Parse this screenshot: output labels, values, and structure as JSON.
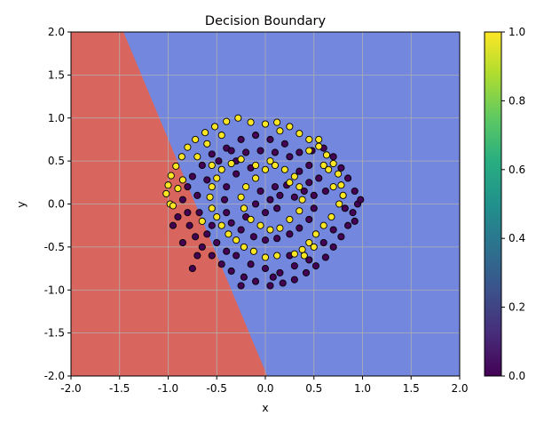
{
  "chart_data": {
    "type": "scatter",
    "title": "Decision Boundary",
    "xlabel": "x",
    "ylabel": "y",
    "xlim": [
      -2.0,
      2.0
    ],
    "ylim": [
      -2.0,
      2.0
    ],
    "xticks": [
      "-2.0",
      "-1.5",
      "-1.0",
      "-0.5",
      "0.0",
      "0.5",
      "1.0",
      "1.5",
      "2.0"
    ],
    "yticks": [
      "-2.0",
      "-1.5",
      "-1.0",
      "-0.5",
      "0.0",
      "0.5",
      "1.0",
      "1.5",
      "2.0"
    ],
    "grid": true,
    "regions": {
      "boundary_line": [
        [
          -1.46,
          2.0
        ],
        [
          0.02,
          -2.0
        ]
      ],
      "left_color": "#d8665e",
      "right_color": "#7387df"
    },
    "colorbar": {
      "range": [
        0.0,
        1.0
      ],
      "ticks": [
        "0.0",
        "0.2",
        "0.4",
        "0.6",
        "0.8",
        "1.0"
      ],
      "cmap": "viridis"
    },
    "point_colors": {
      "class0": "#440154",
      "class1": "#fde725",
      "edge": "#000000"
    },
    "series": [
      {
        "label": "1",
        "points": [
          [
            0.0,
            0.93
          ],
          [
            -0.15,
            0.95
          ],
          [
            -0.28,
            1.0
          ],
          [
            -0.4,
            0.96
          ],
          [
            -0.52,
            0.9
          ],
          [
            -0.62,
            0.83
          ],
          [
            -0.72,
            0.75
          ],
          [
            -0.8,
            0.66
          ],
          [
            -0.86,
            0.55
          ],
          [
            -0.92,
            0.44
          ],
          [
            -0.97,
            0.33
          ],
          [
            -1.0,
            0.22
          ],
          [
            -1.02,
            0.12
          ],
          [
            -0.98,
            0.0
          ],
          [
            -0.95,
            -0.02
          ],
          [
            0.12,
            0.95
          ],
          [
            0.25,
            0.9
          ],
          [
            0.35,
            0.82
          ],
          [
            0.45,
            0.75
          ],
          [
            0.55,
            0.67
          ],
          [
            0.63,
            0.57
          ],
          [
            0.7,
            0.47
          ],
          [
            0.75,
            0.35
          ],
          [
            0.78,
            0.22
          ],
          [
            0.8,
            0.1
          ],
          [
            0.76,
            0.0
          ],
          [
            0.68,
            -0.15
          ],
          [
            0.6,
            -0.25
          ],
          [
            0.52,
            -0.35
          ],
          [
            0.45,
            -0.45
          ],
          [
            0.38,
            -0.53
          ],
          [
            0.3,
            -0.58
          ],
          [
            0.12,
            -0.6
          ],
          [
            0.0,
            -0.62
          ],
          [
            -0.12,
            -0.55
          ],
          [
            -0.22,
            -0.5
          ],
          [
            -0.3,
            -0.42
          ],
          [
            -0.38,
            -0.35
          ],
          [
            -0.45,
            -0.25
          ],
          [
            -0.5,
            -0.15
          ],
          [
            -0.55,
            -0.05
          ],
          [
            -0.57,
            0.08
          ],
          [
            -0.55,
            0.2
          ],
          [
            -0.5,
            0.3
          ],
          [
            -0.45,
            0.4
          ],
          [
            -0.35,
            0.47
          ],
          [
            -0.25,
            0.52
          ],
          [
            -0.1,
            0.45
          ],
          [
            0.0,
            0.4
          ],
          [
            0.1,
            0.45
          ],
          [
            0.2,
            0.4
          ],
          [
            0.3,
            0.32
          ],
          [
            0.35,
            0.2
          ],
          [
            0.38,
            0.05
          ],
          [
            0.35,
            -0.08
          ],
          [
            0.25,
            -0.18
          ],
          [
            0.15,
            -0.28
          ],
          [
            0.05,
            -0.3
          ],
          [
            -0.05,
            -0.25
          ],
          [
            -0.15,
            -0.18
          ],
          [
            -0.22,
            -0.05
          ],
          [
            -0.25,
            0.08
          ],
          [
            -0.2,
            0.2
          ],
          [
            -0.1,
            0.3
          ],
          [
            0.55,
            0.75
          ],
          [
            0.65,
            0.4
          ],
          [
            0.7,
            0.2
          ],
          [
            0.5,
            -0.5
          ],
          [
            0.4,
            -0.6
          ],
          [
            -0.6,
            0.7
          ],
          [
            -0.7,
            0.55
          ],
          [
            -0.85,
            0.28
          ],
          [
            -0.9,
            0.18
          ],
          [
            0.45,
            0.62
          ],
          [
            0.05,
            0.5
          ],
          [
            0.15,
            0.85
          ],
          [
            -0.45,
            0.8
          ],
          [
            -0.55,
            0.45
          ],
          [
            -0.65,
            -0.2
          ],
          [
            0.6,
            0.45
          ],
          [
            0.25,
            0.25
          ]
        ]
      },
      {
        "label": "0",
        "points": [
          [
            -0.1,
            0.8
          ],
          [
            0.05,
            0.75
          ],
          [
            0.2,
            0.7
          ],
          [
            -0.25,
            0.75
          ],
          [
            -0.4,
            0.65
          ],
          [
            -0.55,
            0.58
          ],
          [
            -0.65,
            0.45
          ],
          [
            -0.75,
            0.32
          ],
          [
            -0.8,
            0.2
          ],
          [
            -0.85,
            0.05
          ],
          [
            -0.8,
            -0.1
          ],
          [
            -0.78,
            -0.25
          ],
          [
            -0.72,
            -0.38
          ],
          [
            -0.65,
            -0.5
          ],
          [
            -0.55,
            -0.6
          ],
          [
            -0.45,
            -0.7
          ],
          [
            -0.35,
            -0.78
          ],
          [
            -0.22,
            -0.85
          ],
          [
            -0.1,
            -0.9
          ],
          [
            0.05,
            -0.95
          ],
          [
            0.18,
            -0.92
          ],
          [
            0.3,
            -0.88
          ],
          [
            0.42,
            -0.8
          ],
          [
            0.52,
            -0.72
          ],
          [
            0.62,
            -0.62
          ],
          [
            0.7,
            -0.5
          ],
          [
            0.78,
            -0.38
          ],
          [
            0.85,
            -0.25
          ],
          [
            0.9,
            -0.1
          ],
          [
            0.95,
            0.0
          ],
          [
            0.98,
            0.05
          ],
          [
            0.92,
            0.15
          ],
          [
            0.85,
            0.3
          ],
          [
            0.78,
            0.42
          ],
          [
            0.7,
            0.55
          ],
          [
            0.6,
            0.65
          ],
          [
            0.48,
            0.62
          ],
          [
            0.35,
            0.6
          ],
          [
            0.25,
            0.55
          ],
          [
            0.1,
            0.6
          ],
          [
            -0.05,
            0.62
          ],
          [
            -0.2,
            0.6
          ],
          [
            -0.3,
            0.35
          ],
          [
            -0.4,
            0.2
          ],
          [
            -0.42,
            0.05
          ],
          [
            -0.4,
            -0.1
          ],
          [
            -0.35,
            -0.22
          ],
          [
            -0.25,
            -0.3
          ],
          [
            -0.12,
            -0.38
          ],
          [
            0.0,
            -0.42
          ],
          [
            0.12,
            -0.4
          ],
          [
            0.25,
            -0.35
          ],
          [
            0.35,
            -0.28
          ],
          [
            0.45,
            -0.18
          ],
          [
            0.5,
            -0.05
          ],
          [
            0.5,
            0.1
          ],
          [
            0.45,
            0.25
          ],
          [
            0.35,
            0.38
          ],
          [
            0.22,
            0.22
          ],
          [
            0.1,
            0.2
          ],
          [
            -0.05,
            0.15
          ],
          [
            -0.1,
            0.0
          ],
          [
            0.0,
            -0.1
          ],
          [
            0.12,
            -0.05
          ],
          [
            0.15,
            0.1
          ],
          [
            -0.9,
            -0.15
          ],
          [
            -0.95,
            -0.25
          ],
          [
            -0.85,
            -0.45
          ],
          [
            -0.7,
            -0.6
          ],
          [
            -0.6,
            -0.35
          ],
          [
            -0.5,
            -0.45
          ],
          [
            -0.3,
            -0.6
          ],
          [
            -0.15,
            -0.7
          ],
          [
            0.0,
            -0.75
          ],
          [
            0.15,
            -0.8
          ],
          [
            0.3,
            -0.72
          ],
          [
            0.45,
            -0.65
          ],
          [
            0.6,
            -0.45
          ],
          [
            0.7,
            -0.3
          ],
          [
            0.82,
            -0.05
          ],
          [
            0.62,
            0.15
          ],
          [
            0.55,
            0.3
          ],
          [
            0.45,
            0.45
          ],
          [
            -0.15,
            0.42
          ],
          [
            -0.3,
            0.5
          ],
          [
            -0.48,
            0.5
          ],
          [
            -0.6,
            0.28
          ],
          [
            -0.7,
            0.1
          ],
          [
            -0.68,
            -0.1
          ],
          [
            -0.55,
            -0.25
          ],
          [
            0.25,
            -0.6
          ],
          [
            0.08,
            -0.85
          ],
          [
            -0.25,
            -0.95
          ],
          [
            -0.4,
            -0.55
          ],
          [
            0.92,
            -0.2
          ],
          [
            -0.75,
            -0.75
          ],
          [
            0.05,
            0.05
          ],
          [
            -0.2,
            -0.15
          ],
          [
            0.3,
            0.08
          ],
          [
            -0.35,
            0.62
          ],
          [
            0.4,
            0.15
          ]
        ]
      }
    ]
  }
}
